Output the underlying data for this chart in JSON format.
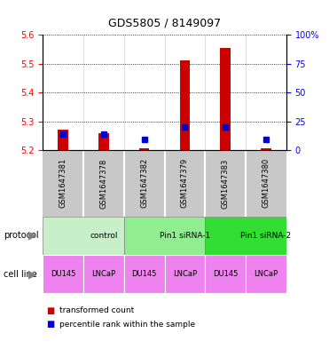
{
  "title": "GDS5805 / 8149097",
  "samples": [
    "GSM1647381",
    "GSM1647378",
    "GSM1647382",
    "GSM1647379",
    "GSM1647383",
    "GSM1647380"
  ],
  "red_values": [
    5.27,
    5.26,
    5.205,
    5.51,
    5.555,
    5.205
  ],
  "blue_percentiles": [
    14,
    14,
    9,
    20,
    20,
    9
  ],
  "y_min": 5.2,
  "y_max": 5.6,
  "y_ticks_left": [
    5.2,
    5.3,
    5.4,
    5.5,
    5.6
  ],
  "y_ticks_right": [
    0,
    25,
    50,
    75,
    100
  ],
  "protocol_groups": [
    {
      "label": "control",
      "start": 0,
      "end": 2,
      "color": "#c8f0c8"
    },
    {
      "label": "Pin1 siRNA-1",
      "start": 2,
      "end": 4,
      "color": "#90ee90"
    },
    {
      "label": "Pin1 siRNA-2",
      "start": 4,
      "end": 6,
      "color": "#33dd33"
    }
  ],
  "cell_lines": [
    "DU145",
    "LNCaP",
    "DU145",
    "LNCaP",
    "DU145",
    "LNCaP"
  ],
  "cell_line_color": "#ee82ee",
  "sample_bg_color": "#c8c8c8",
  "bar_color": "#cc0000",
  "dot_color": "#0000cc",
  "legend_red": "transformed count",
  "legend_blue": "percentile rank within the sample",
  "bar_width": 0.25
}
